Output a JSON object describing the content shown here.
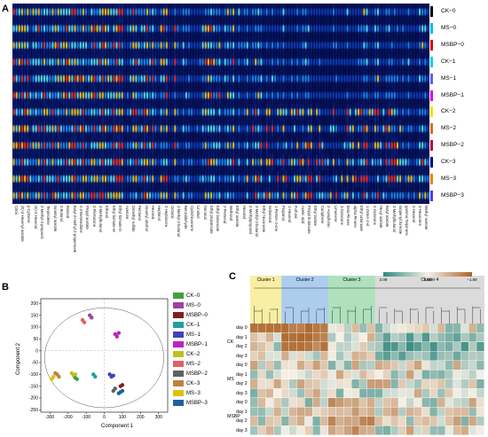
{
  "panel_labels": {
    "a": "A",
    "b": "B",
    "c": "C"
  },
  "panelA": {
    "samples": [
      {
        "label": "CK−0",
        "color": "#000000"
      },
      {
        "label": "MS−0",
        "color": "#00c0e8"
      },
      {
        "label": "MSBP−0",
        "color": "#e00000"
      },
      {
        "label": "CK−1",
        "color": "#00d8d8"
      },
      {
        "label": "MS−1",
        "color": "#6060ff"
      },
      {
        "label": "MSBP−1",
        "color": "#e000e0"
      },
      {
        "label": "CK−2",
        "color": "#ffe000"
      },
      {
        "label": "MS−2",
        "color": "#e07020"
      },
      {
        "label": "MSBP−2",
        "color": "#c00040"
      },
      {
        "label": "CK−3",
        "color": "#000080"
      },
      {
        "label": "MS−3",
        "color": "#ff8000"
      },
      {
        "label": "MSBP−3",
        "color": "#4040ff"
      }
    ],
    "compounds": [
      "Citral",
      "(E)-2-Hexenyl acetate",
      "p-Cymene",
      "(E)-2-Hexenal",
      "2-Methyl-2-propanol",
      "Terpinolene",
      "Isoamyl acetate",
      "2-Butanol",
      "Butanal",
      "Butyl-2-methyl-2-propenoate",
      "2,3-Butanedione",
      "Propyl acetate",
      "2-Pentanone",
      "3-Methylbutanal",
      "Ethanol",
      "Ethyl formate-M",
      "Ethyl formate-D",
      "Acetone",
      "Dimethyl sulfide",
      "Pentanal",
      "Isoamyl alcohol",
      "Hexanal",
      "Heptanal",
      "2-Heptanone",
      "Octanal",
      "2-Methyl-2-butanal",
      "Benzaldehyde",
      "Cyclohexanone",
      "Linalool",
      "Nonanal",
      "Ethyl propanoate",
      "Ethyl butanoate",
      "2-Pentenal",
      "Methanol",
      "Ethyl acetate",
      "Hexanol",
      "2-Methylpropanol",
      "3-Methyl-2-butanol",
      "Ethyl hexanoate",
      "Isobutanal",
      "1-Penten-3-one",
      "Propanal",
      "1-Hexanol",
      "Furfural",
      "Acetic acid",
      "Propyl butanoate",
      "Ethyl lactate",
      "Camphene",
      "2-Acetylfuran",
      "Limonene",
      "3-Octanone",
      "beta-Pinene",
      "alpha-Pinene",
      "Ethyl octanoate",
      "1-Octen-3-ol",
      "2-Octanone",
      "Hexyl acetate",
      "Butyl acetate",
      "2-Methylbutanal",
      "Isopentyl formate",
      "gamma-Terpinene",
      "2-Hexanol",
      "3-Hexanone",
      "Methyl acetate"
    ]
  },
  "panelB": {
    "xlabel": "Component 1",
    "ylabel": "Component 2",
    "x_ticks": [
      -300,
      -200,
      -100,
      0,
      100,
      200,
      300
    ],
    "y_ticks": [
      -250,
      -200,
      -150,
      -100,
      -50,
      0,
      50,
      100,
      150,
      200
    ],
    "legend": [
      {
        "label": "CK−0",
        "color": "#40a040"
      },
      {
        "label": "MS−0",
        "color": "#a040a0"
      },
      {
        "label": "MSBP−0",
        "color": "#802020"
      },
      {
        "label": "CK−1",
        "color": "#20a0a0"
      },
      {
        "label": "MS−1",
        "color": "#4040c0"
      },
      {
        "label": "MSBP−1",
        "color": "#c020c0"
      },
      {
        "label": "CK−2",
        "color": "#c0c020"
      },
      {
        "label": "MS−2",
        "color": "#e06060"
      },
      {
        "label": "MSBP−2",
        "color": "#606060"
      },
      {
        "label": "CK−3",
        "color": "#c08040"
      },
      {
        "label": "MS−3",
        "color": "#e0c000"
      },
      {
        "label": "MSBP−3",
        "color": "#2060a0"
      }
    ]
  },
  "panelC": {
    "clusters": [
      "Cluster 1",
      "Cluster 2",
      "Cluster 3",
      "Cluster 4"
    ],
    "cluster_colors": [
      "#f5e87a",
      "#8ab8e8",
      "#8cd4a0",
      "#cccccc"
    ],
    "colorbar": {
      "min_label": "3.09",
      "mid_label": "0.00",
      "max_label": "−1.89"
    },
    "groups": [
      {
        "name": "CK",
        "days": [
          "day 0",
          "day 1",
          "day 2",
          "day 3"
        ]
      },
      {
        "name": "MS",
        "days": [
          "day 0",
          "day 1",
          "day 2",
          "day 3"
        ]
      },
      {
        "name": "MSBP",
        "days": [
          "day 0",
          "day 1",
          "day 2",
          "day 3"
        ]
      }
    ]
  }
}
